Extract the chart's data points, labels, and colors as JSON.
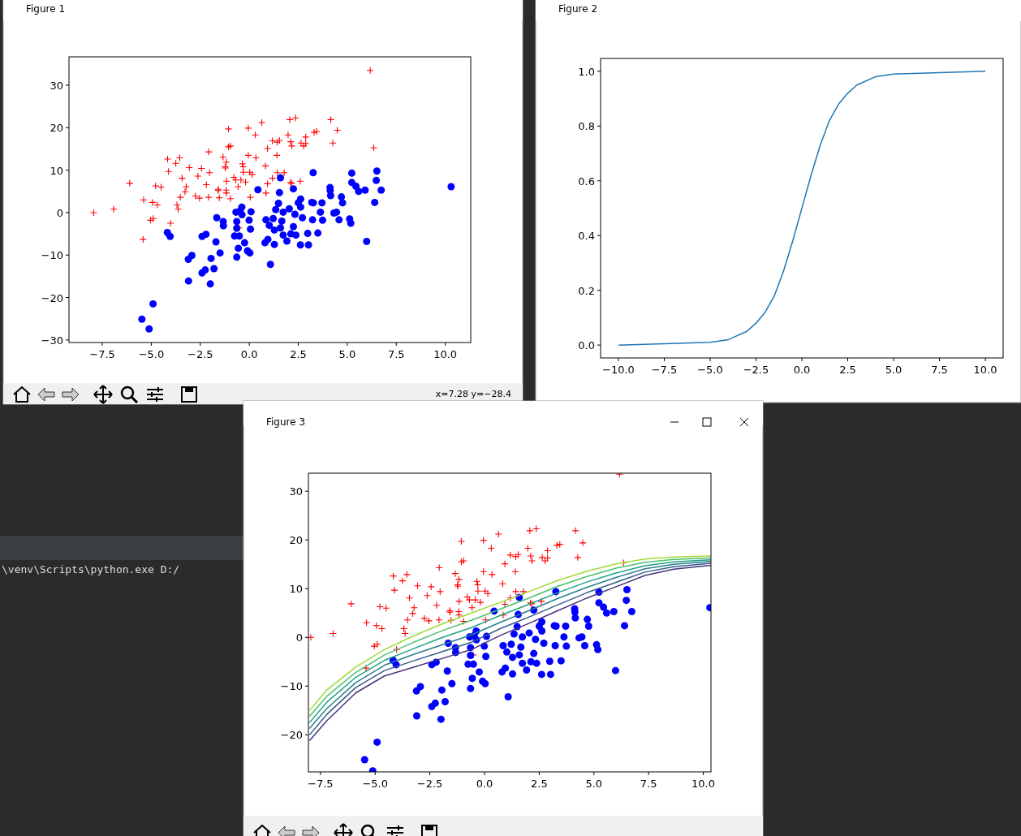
{
  "chart_data": [
    {
      "type": "scatter",
      "title": "Figure 1",
      "xlim": [
        -9.2,
        11.3
      ],
      "ylim": [
        -30.6,
        36.7
      ],
      "xticks": [
        {
          "value": -7.5,
          "label": "−7.5"
        },
        {
          "value": -5,
          "label": "−5.0"
        },
        {
          "value": -2.5,
          "label": "−2.5"
        },
        {
          "value": 0,
          "label": "0.0"
        },
        {
          "value": 2.5,
          "label": "2.5"
        },
        {
          "value": 5,
          "label": "5.0"
        },
        {
          "value": 7.5,
          "label": "7.5"
        },
        {
          "value": 10,
          "label": "10.0"
        }
      ],
      "yticks": [
        {
          "value": -30,
          "label": "−30"
        },
        {
          "value": -20,
          "label": "−20"
        },
        {
          "value": -10,
          "label": "−10"
        },
        0,
        10,
        20,
        30
      ],
      "annotations": [
        "x=7.28 y=−28.4"
      ],
      "series": [
        {
          "color": "#ff0000",
          "marker": "cross",
          "x": [
            -7.94,
            -6.92,
            -6.1,
            -5.39,
            -5.42,
            -4.94,
            -4.78,
            -4.69,
            -4.5,
            -5.04,
            -4.9,
            -4.02,
            -4.17,
            -4.12,
            -3.75,
            -3.55,
            -3.43,
            -3.69,
            -3.63,
            -3.52,
            -3.28,
            -3.22,
            -3.06,
            -2.75,
            -2.62,
            -2.54,
            -2.44,
            -2.19,
            -2.08,
            -2.03,
            -2.07,
            -1.58,
            -1.53,
            -1.59,
            -1.34,
            -1.17,
            -1.23,
            -1.22,
            -1.16,
            -1.18,
            -1.17,
            -1.06,
            -1.06,
            -0.96,
            -0.96,
            -0.79,
            -0.69,
            -0.57,
            -0.43,
            -0.35,
            -0.31,
            -0.3,
            -0.19,
            -0.05,
            -0.05,
            0.02,
            0.15,
            0.05,
            0.31,
            0.34,
            0.64,
            0.83,
            0.93,
            0.93,
            0.85,
            1.18,
            1.18,
            1.41,
            1.42,
            1.54,
            1.43,
            1.78,
            1.98,
            2.07,
            2.11,
            2.17,
            2.1,
            2.16,
            2.36,
            2.6,
            2.64,
            2.77,
            2.88,
            2.88,
            3.31,
            3.44,
            4.16,
            4.26,
            4.49,
            6.17,
            6.35,
            -0.52
          ],
          "values": [
            0,
            0.8,
            6.9,
            3,
            -6.3,
            2.4,
            6.3,
            1.8,
            6,
            -1.8,
            -1.4,
            -2.5,
            12.6,
            9.7,
            11.6,
            12.9,
            8.1,
            1.8,
            0.8,
            3.6,
            4.9,
            6.1,
            10.6,
            3.9,
            8.6,
            3.4,
            10.4,
            6.6,
            3.6,
            9.4,
            14.3,
            5.2,
            3.5,
            5.5,
            13.1,
            11.9,
            10.8,
            10.5,
            7.4,
            5.3,
            4.6,
            19.7,
            15.5,
            15.7,
            3.3,
            8.3,
            7.7,
            6.1,
            7.7,
            11.5,
            10.8,
            9.5,
            7.2,
            19.9,
            13.5,
            9.5,
            9,
            3.6,
            18.3,
            12.9,
            21.2,
            11,
            15.1,
            6.8,
            4.6,
            16.9,
            8.1,
            13.5,
            16.6,
            17,
            9.4,
            9.4,
            18.3,
            21.9,
            16.7,
            15.7,
            7.1,
            6.9,
            22.3,
            7.4,
            16.4,
            15.7,
            17.8,
            16.3,
            18.9,
            19.1,
            21.9,
            16.4,
            19.4,
            33.5,
            15.3,
            -3.6
          ]
        },
        {
          "color": "#0000ff",
          "marker": "circle",
          "x": [
            -4.91,
            -5.48,
            -5.11,
            -4.18,
            -4.04,
            -3.11,
            -2.93,
            -3.1,
            -2.41,
            -2.25,
            -2.41,
            -2.21,
            -1.95,
            -1.99,
            -1.8,
            -1.7,
            -1.66,
            -1.33,
            -1.32,
            -1.49,
            -0.68,
            -0.64,
            -0.64,
            -0.75,
            -0.51,
            -0.56,
            -0.64,
            -0.24,
            -0.38,
            -0.37,
            -0.47,
            -0.09,
            0.03,
            0.06,
            -0.01,
            0.09,
            0.44,
            0.8,
            0.85,
            0.95,
            1.02,
            1.08,
            1.22,
            1.28,
            1.28,
            1.35,
            1.49,
            1.54,
            1.59,
            1.59,
            1.66,
            1.73,
            1.73,
            1.92,
            2.04,
            2.12,
            2.25,
            2.25,
            2.33,
            2.38,
            2.5,
            2.62,
            2.62,
            2.61,
            2.71,
            2.98,
            3.02,
            3.19,
            3.23,
            3.27,
            3.26,
            3.5,
            3.63,
            3.71,
            3.74,
            4.12,
            4.13,
            4.15,
            4.32,
            4.45,
            4.58,
            4.7,
            4.76,
            5.12,
            5.18,
            5.23,
            5.23,
            5.44,
            5.58,
            5.91,
            5.99,
            6.4,
            6.48,
            6.51,
            6.73,
            10.3
          ],
          "values": [
            -21.5,
            -25.1,
            -27.4,
            -4.7,
            -5.6,
            -11,
            -10.1,
            -16.1,
            -14.2,
            -13.5,
            -5.6,
            -5.1,
            -10.8,
            -16.8,
            -13.2,
            -6.9,
            -1.2,
            -2.1,
            -3.1,
            -9.5,
            0.1,
            -2.1,
            -3.7,
            -5.5,
            -5.5,
            -8.4,
            -10.5,
            -7.1,
            1.3,
            -0.5,
            0.4,
            -9,
            -9.5,
            -3.9,
            -1.8,
            0.2,
            5.4,
            -7.1,
            -1.7,
            -6.3,
            -3,
            -12.2,
            -1.4,
            -4.1,
            -7.5,
            0.7,
            2.2,
            4.7,
            8.2,
            -3.6,
            -2,
            -5.3,
            0.1,
            -6.7,
            0.9,
            -5,
            5.6,
            -3.3,
            -0.4,
            -5.3,
            2.3,
            3.2,
            1.3,
            -7.6,
            -1.2,
            -4.9,
            -7.6,
            2.4,
            -1.7,
            2.3,
            9.4,
            -4.8,
            0.1,
            2.3,
            -1.8,
            5.9,
            5.2,
            4,
            -0.1,
            0.1,
            -1.7,
            3.7,
            2.3,
            -1.5,
            -2.5,
            9.3,
            7.1,
            6.2,
            5,
            5.3,
            -6.8,
            2.4,
            7.6,
            9.8,
            5.3,
            6.1
          ]
        }
      ]
    },
    {
      "type": "line",
      "title": "Figure 2",
      "xlim": [
        -10.97,
        10.97
      ],
      "ylim": [
        -0.047,
        1.047
      ],
      "xticks": [
        {
          "value": -10,
          "label": "−10.0"
        },
        {
          "value": -7.5,
          "label": "−7.5"
        },
        {
          "value": -5,
          "label": "−5.0"
        },
        {
          "value": -2.5,
          "label": "−2.5"
        },
        {
          "value": 0,
          "label": "0.0"
        },
        {
          "value": 2.5,
          "label": "2.5"
        },
        {
          "value": 5,
          "label": "5.0"
        },
        {
          "value": 7.5,
          "label": "7.5"
        },
        {
          "value": 10,
          "label": "10.0"
        }
      ],
      "yticks": [
        {
          "value": 0,
          "label": "0.0"
        },
        {
          "value": 0.2,
          "label": "0.2"
        },
        {
          "value": 0.4,
          "label": "0.4"
        },
        {
          "value": 0.6,
          "label": "0.6"
        },
        {
          "value": 0.8,
          "label": "0.8"
        },
        {
          "value": 1,
          "label": "1.0"
        }
      ],
      "series": [
        {
          "color": "#1f77b4",
          "x": [
            -10,
            -5,
            -4,
            -3,
            -2.5,
            -2,
            -1.5,
            -1,
            -0.5,
            0,
            0.5,
            1,
            1.5,
            2,
            2.5,
            3,
            4,
            5,
            10
          ],
          "values": [
            0,
            0.01,
            0.02,
            0.05,
            0.08,
            0.12,
            0.18,
            0.27,
            0.38,
            0.5,
            0.62,
            0.73,
            0.82,
            0.88,
            0.92,
            0.95,
            0.98,
            0.99,
            1
          ]
        }
      ]
    },
    {
      "type": "scatter",
      "title": "Figure 3",
      "xlim": [
        -8.05,
        10.35
      ],
      "ylim": [
        -27.6,
        33.7
      ],
      "xticks": [
        {
          "value": -7.5,
          "label": "−7.5"
        },
        {
          "value": -5,
          "label": "−5.0"
        },
        {
          "value": -2.5,
          "label": "−2.5"
        },
        {
          "value": 0,
          "label": "0.0"
        },
        {
          "value": 2.5,
          "label": "2.5"
        },
        {
          "value": 5,
          "label": "5.0"
        },
        {
          "value": 7.5,
          "label": "7.5"
        },
        {
          "value": 10,
          "label": "10.0"
        }
      ],
      "yticks": [
        {
          "value": -20,
          "label": "−20"
        },
        {
          "value": -10,
          "label": "−10"
        },
        0,
        10,
        20,
        30
      ],
      "annotations": [
        "\\venv\\Scripts\\python.exe D:/"
      ],
      "series": [
        {
          "color": "#ff0000",
          "marker": "cross",
          "x": [
            -7.94,
            -6.92,
            -6.1,
            -5.39,
            -5.42,
            -4.94,
            -4.78,
            -4.69,
            -4.5,
            -5.04,
            -4.9,
            -4.02,
            -4.17,
            -4.12,
            -3.75,
            -3.55,
            -3.43,
            -3.69,
            -3.63,
            -3.52,
            -3.28,
            -3.22,
            -3.06,
            -2.75,
            -2.62,
            -2.54,
            -2.44,
            -2.19,
            -2.08,
            -2.03,
            -2.07,
            -1.58,
            -1.53,
            -1.59,
            -1.34,
            -1.17,
            -1.23,
            -1.22,
            -1.16,
            -1.18,
            -1.17,
            -1.06,
            -1.06,
            -0.96,
            -0.96,
            -0.79,
            -0.69,
            -0.57,
            -0.43,
            -0.35,
            -0.31,
            -0.3,
            -0.19,
            -0.05,
            -0.05,
            0.02,
            0.15,
            0.05,
            0.31,
            0.34,
            0.64,
            0.83,
            0.93,
            0.93,
            0.85,
            1.18,
            1.18,
            1.41,
            1.42,
            1.54,
            1.43,
            1.78,
            1.98,
            2.07,
            2.11,
            2.17,
            2.1,
            2.16,
            2.36,
            2.6,
            2.64,
            2.77,
            2.88,
            2.88,
            3.31,
            3.44,
            4.16,
            4.26,
            4.49,
            6.17,
            6.35,
            -0.52
          ],
          "values": [
            0,
            0.8,
            6.9,
            3,
            -6.3,
            2.4,
            6.3,
            1.8,
            6,
            -1.8,
            -1.4,
            -2.5,
            12.6,
            9.7,
            11.6,
            12.9,
            8.1,
            1.8,
            0.8,
            3.6,
            4.9,
            6.1,
            10.6,
            3.9,
            8.6,
            3.4,
            10.4,
            6.6,
            3.6,
            9.4,
            14.3,
            5.2,
            3.5,
            5.5,
            13.1,
            11.9,
            10.8,
            10.5,
            7.4,
            5.3,
            4.6,
            19.7,
            15.5,
            15.7,
            3.3,
            8.3,
            7.7,
            6.1,
            7.7,
            11.5,
            10.8,
            9.5,
            7.2,
            19.9,
            13.5,
            9.5,
            9,
            3.6,
            18.3,
            12.9,
            21.2,
            11,
            15.1,
            6.8,
            4.6,
            16.9,
            8.1,
            13.5,
            16.6,
            17,
            9.4,
            9.4,
            18.3,
            21.9,
            16.7,
            15.7,
            7.1,
            6.9,
            22.3,
            7.4,
            16.4,
            15.7,
            17.8,
            16.3,
            18.9,
            19.1,
            21.9,
            16.4,
            19.4,
            33.5,
            15.3,
            -3.6
          ]
        },
        {
          "color": "#0000ff",
          "marker": "circle",
          "x": [
            -4.91,
            -5.48,
            -5.11,
            -4.18,
            -4.04,
            -3.11,
            -2.93,
            -3.1,
            -2.41,
            -2.25,
            -2.41,
            -2.21,
            -1.95,
            -1.99,
            -1.8,
            -1.7,
            -1.66,
            -1.33,
            -1.32,
            -1.49,
            -0.68,
            -0.64,
            -0.64,
            -0.75,
            -0.51,
            -0.56,
            -0.64,
            -0.24,
            -0.38,
            -0.37,
            -0.47,
            -0.09,
            0.03,
            0.06,
            -0.01,
            0.09,
            0.44,
            0.8,
            0.85,
            0.95,
            1.02,
            1.08,
            1.22,
            1.28,
            1.28,
            1.35,
            1.49,
            1.54,
            1.59,
            1.59,
            1.66,
            1.73,
            1.73,
            1.92,
            2.04,
            2.12,
            2.25,
            2.25,
            2.33,
            2.38,
            2.5,
            2.62,
            2.62,
            2.61,
            2.71,
            2.98,
            3.02,
            3.19,
            3.23,
            3.27,
            3.26,
            3.5,
            3.63,
            3.71,
            3.74,
            4.12,
            4.13,
            4.15,
            4.32,
            4.45,
            4.58,
            4.7,
            4.76,
            5.12,
            5.18,
            5.23,
            5.23,
            5.44,
            5.58,
            5.91,
            5.99,
            6.4,
            6.48,
            6.51,
            6.73,
            10.3
          ],
          "values": [
            -21.5,
            -25.1,
            -27.4,
            -4.7,
            -5.6,
            -11,
            -10.1,
            -16.1,
            -14.2,
            -13.5,
            -5.6,
            -5.1,
            -10.8,
            -16.8,
            -13.2,
            -6.9,
            -1.2,
            -2.1,
            -3.1,
            -9.5,
            0.1,
            -2.1,
            -3.7,
            -5.5,
            -5.5,
            -8.4,
            -10.5,
            -7.1,
            1.3,
            -0.5,
            0.4,
            -9,
            -9.5,
            -3.9,
            -1.8,
            0.2,
            5.4,
            -7.1,
            -1.7,
            -6.3,
            -3,
            -12.2,
            -1.4,
            -4.1,
            -7.5,
            0.7,
            2.2,
            4.7,
            8.2,
            -3.6,
            -2,
            -5.3,
            0.1,
            -6.7,
            0.9,
            -5,
            5.6,
            -3.3,
            -0.4,
            -5.3,
            2.3,
            3.2,
            1.3,
            -7.6,
            -1.2,
            -4.9,
            -7.6,
            2.4,
            -1.7,
            2.3,
            9.4,
            -4.8,
            0.1,
            2.3,
            -1.8,
            5.9,
            5.2,
            4,
            -0.1,
            0.1,
            -1.7,
            3.7,
            2.3,
            -1.5,
            -2.5,
            9.3,
            7.1,
            6.2,
            5,
            5.3,
            -6.8,
            2.4,
            7.6,
            9.8,
            5.3,
            6.1
          ]
        },
        {
          "type": "line",
          "color": "#46337e",
          "x": [
            -8,
            -7.21,
            -5.89,
            -4.57,
            -3.24,
            -1.92,
            -0.6,
            0.72,
            2.04,
            3.36,
            4.69,
            6.01,
            7.33,
            8.65,
            10.34
          ],
          "values": [
            -21.2,
            -17.1,
            -11.4,
            -7.9,
            -6.1,
            -4.3,
            -2.5,
            0.4,
            2.9,
            5.5,
            8.1,
            10.4,
            12.7,
            14,
            14.8
          ]
        },
        {
          "type": "line",
          "color": "#365c8d",
          "x": [
            -8,
            -7.21,
            -5.89,
            -4.57,
            -3.24,
            -1.92,
            -0.6,
            0.72,
            2.04,
            3.36,
            4.69,
            6.01,
            7.33,
            8.65,
            10.34
          ],
          "values": [
            -20,
            -15.8,
            -10.3,
            -6.8,
            -4.8,
            -2.9,
            -1,
            1.8,
            4.2,
            6.7,
            9.2,
            11.3,
            13.4,
            14.5,
            15.2
          ]
        },
        {
          "type": "line",
          "color": "#277f8e",
          "x": [
            -8,
            -7.21,
            -5.89,
            -4.57,
            -3.24,
            -1.92,
            -0.6,
            0.72,
            2.04,
            3.36,
            4.69,
            6.01,
            7.33,
            8.65,
            10.34
          ],
          "values": [
            -18.7,
            -14.6,
            -9.3,
            -5.7,
            -3.5,
            -1.5,
            0.5,
            3.1,
            5.5,
            8,
            10.3,
            12.3,
            14.1,
            15,
            15.6
          ]
        },
        {
          "type": "line",
          "color": "#1fa187",
          "x": [
            -8,
            -7.21,
            -5.89,
            -4.57,
            -3.24,
            -1.92,
            -0.6,
            0.72,
            2.04,
            3.36,
            4.69,
            6.01,
            7.33,
            8.65,
            10.34
          ],
          "values": [
            -17.5,
            -13.3,
            -8.2,
            -4.7,
            -2.3,
            0,
            2,
            4.5,
            6.8,
            9.2,
            11.4,
            13.2,
            14.7,
            15.5,
            15.9
          ]
        },
        {
          "type": "line",
          "color": "#4ac16d",
          "x": [
            -8,
            -7.21,
            -5.89,
            -4.57,
            -3.24,
            -1.92,
            -0.6,
            0.72,
            2.04,
            3.36,
            4.69,
            6.01,
            7.33,
            8.65,
            10.34
          ],
          "values": [
            -16.2,
            -12.1,
            -7.2,
            -3.6,
            -1,
            1.4,
            3.5,
            5.8,
            8.1,
            10.5,
            12.5,
            14.2,
            15.4,
            16,
            16.3
          ]
        },
        {
          "type": "line",
          "color": "#a0da39",
          "x": [
            -8,
            -7.21,
            -5.89,
            -4.57,
            -3.24,
            -1.92,
            -0.6,
            0.72,
            2.04,
            3.36,
            4.69,
            6.01,
            7.33,
            8.65,
            10.34
          ],
          "values": [
            -15,
            -10.8,
            -6.1,
            -2.5,
            0.3,
            2.8,
            5,
            7.2,
            9.4,
            11.7,
            13.6,
            15.1,
            16.1,
            16.5,
            16.7
          ]
        }
      ]
    }
  ]
}
